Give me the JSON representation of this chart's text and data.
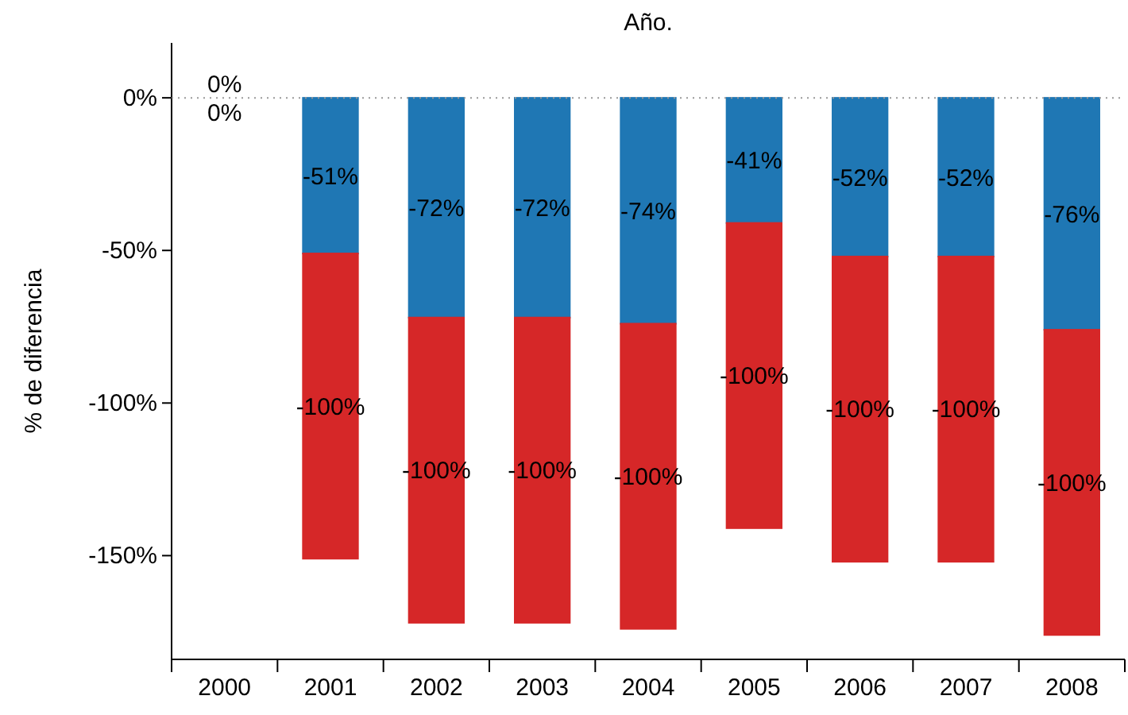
{
  "chart_data": {
    "type": "bar",
    "title": "Año.",
    "ylabel": "% de diferencia",
    "stacked": true,
    "categories": [
      "2000",
      "2001",
      "2002",
      "2003",
      "2004",
      "2005",
      "2006",
      "2007",
      "2008"
    ],
    "series": [
      {
        "color": "#1f77b4",
        "values": [
          0,
          -51,
          -72,
          -72,
          -74,
          -41,
          -52,
          -52,
          -76
        ],
        "value_labels": [
          "0%",
          "-51%",
          "-72%",
          "-72%",
          "-74%",
          "-41%",
          "-52%",
          "-52%",
          "-76%"
        ]
      },
      {
        "color": "#d62728",
        "values": [
          0,
          -100,
          -100,
          -100,
          -100,
          -100,
          -100,
          -100,
          -100
        ],
        "value_labels": [
          "0%",
          "-100%",
          "-100%",
          "-100%",
          "-100%",
          "-100%",
          "-100%",
          "-100%",
          "-100%"
        ]
      }
    ],
    "ylim": [
      -184,
      18
    ],
    "yticks": [
      {
        "value": 0,
        "label": "0%"
      },
      {
        "value": -50,
        "label": "-50%"
      },
      {
        "value": -100,
        "label": "-100%"
      },
      {
        "value": -150,
        "label": "-150%"
      }
    ],
    "ref_lines": [
      {
        "axis": "y",
        "value": 0,
        "color": "#999999",
        "line_style": "dotted"
      }
    ],
    "grid": false
  }
}
